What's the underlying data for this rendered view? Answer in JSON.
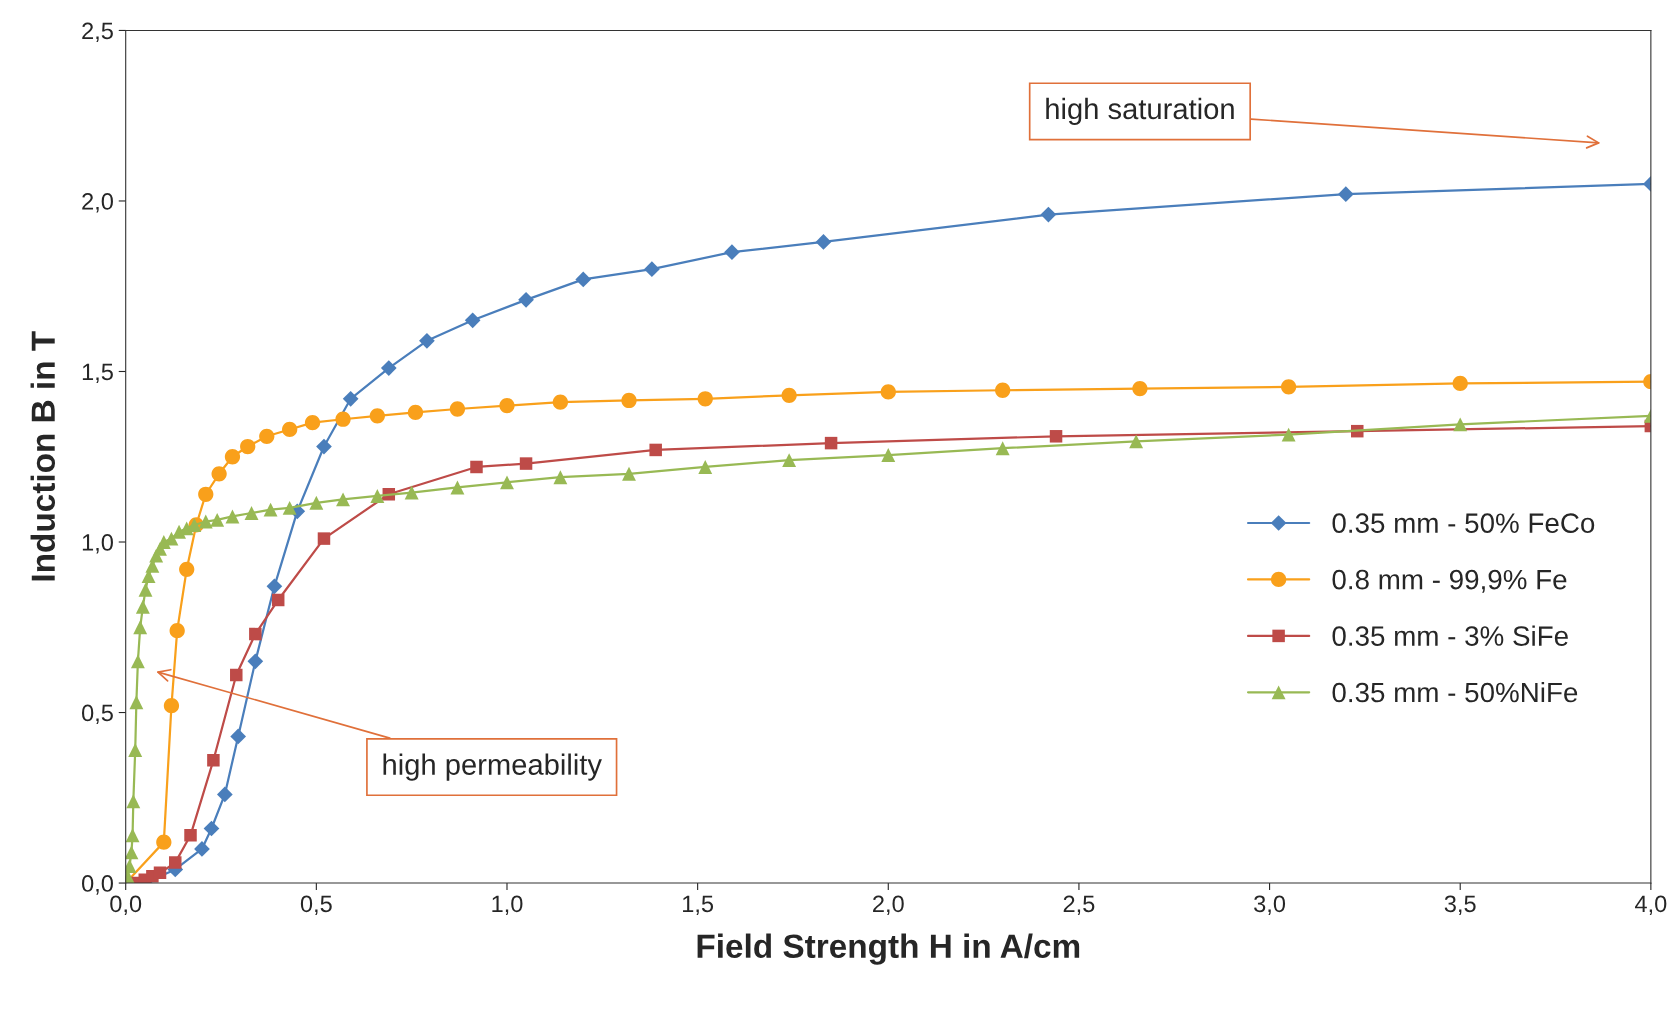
{
  "chart_data": {
    "type": "line",
    "xlabel": "Field Strength H in A/cm",
    "ylabel": "Induction B in T",
    "xlim": [
      0,
      4
    ],
    "ylim": [
      0,
      2.5
    ],
    "xticks": [
      {
        "value": 0,
        "label": "0,0"
      },
      {
        "value": 0.5,
        "label": "0,5"
      },
      {
        "value": 1,
        "label": "1,0"
      },
      {
        "value": 1.5,
        "label": "1,5"
      },
      {
        "value": 2,
        "label": "2,0"
      },
      {
        "value": 2.5,
        "label": "2,5"
      },
      {
        "value": 3,
        "label": "3,0"
      },
      {
        "value": 3.5,
        "label": "3,5"
      },
      {
        "value": 4,
        "label": "4,0"
      }
    ],
    "yticks": [
      {
        "value": 0,
        "label": "0,0"
      },
      {
        "value": 0.5,
        "label": "0,5"
      },
      {
        "value": 1,
        "label": "1,0"
      },
      {
        "value": 1.5,
        "label": "1,5"
      },
      {
        "value": 2,
        "label": "2,0"
      },
      {
        "value": 2.5,
        "label": "2,5"
      }
    ],
    "grid": false,
    "legend": "right",
    "line_style": "solid",
    "annotations": [
      "high saturation",
      "high permeability"
    ],
    "series": [
      {
        "name": "0.35 mm - 50% FeCo",
        "color": "#4a7ebb",
        "marker": "diamond",
        "x": [
          0.05,
          0.13,
          0.2,
          0.225,
          0.26,
          0.295,
          0.34,
          0.39,
          0.45,
          0.52,
          0.59,
          0.69,
          0.79,
          0.91,
          1.05,
          1.2,
          1.38,
          1.59,
          1.83,
          2.42,
          3.2,
          4.0
        ],
        "values": [
          0.0,
          0.04,
          0.1,
          0.16,
          0.26,
          0.43,
          0.65,
          0.87,
          1.09,
          1.28,
          1.42,
          1.51,
          1.59,
          1.65,
          1.71,
          1.77,
          1.8,
          1.85,
          1.88,
          1.96,
          2.02,
          2.05
        ]
      },
      {
        "name": "0.8 mm - 99,9% Fe",
        "color": "#f9a01b",
        "marker": "circle",
        "x": [
          0.0,
          0.1,
          0.12,
          0.135,
          0.16,
          0.185,
          0.21,
          0.245,
          0.28,
          0.32,
          0.37,
          0.43,
          0.49,
          0.57,
          0.66,
          0.76,
          0.87,
          1.0,
          1.14,
          1.32,
          1.52,
          1.74,
          2.0,
          2.3,
          2.66,
          3.05,
          3.5,
          4.0
        ],
        "values": [
          0.0,
          0.12,
          0.52,
          0.74,
          0.92,
          1.05,
          1.14,
          1.2,
          1.25,
          1.28,
          1.31,
          1.33,
          1.35,
          1.36,
          1.37,
          1.38,
          1.39,
          1.4,
          1.41,
          1.415,
          1.42,
          1.43,
          1.44,
          1.445,
          1.45,
          1.455,
          1.465,
          1.47
        ]
      },
      {
        "name": "0.35 mm - 3% SiFe",
        "color": "#be4b48",
        "marker": "square",
        "x": [
          0.03,
          0.05,
          0.07,
          0.09,
          0.13,
          0.17,
          0.23,
          0.29,
          0.34,
          0.4,
          0.52,
          0.69,
          0.92,
          1.05,
          1.39,
          1.85,
          2.44,
          3.23,
          4.0
        ],
        "values": [
          0.0,
          0.01,
          0.02,
          0.03,
          0.06,
          0.14,
          0.36,
          0.61,
          0.73,
          0.83,
          1.01,
          1.14,
          1.22,
          1.23,
          1.27,
          1.29,
          1.31,
          1.325,
          1.34
        ]
      },
      {
        "name": "0.35 mm - 50%NiFe",
        "color": "#98b954",
        "marker": "triangle",
        "x": [
          0.0,
          0.005,
          0.01,
          0.015,
          0.018,
          0.02,
          0.025,
          0.028,
          0.032,
          0.038,
          0.045,
          0.052,
          0.06,
          0.07,
          0.08,
          0.09,
          0.1,
          0.12,
          0.14,
          0.16,
          0.18,
          0.21,
          0.24,
          0.28,
          0.33,
          0.38,
          0.43,
          0.5,
          0.57,
          0.66,
          0.75,
          0.87,
          1.0,
          1.14,
          1.32,
          1.52,
          1.74,
          2.0,
          2.3,
          2.65,
          3.05,
          3.5,
          4.0
        ],
        "values": [
          0.0,
          0.02,
          0.05,
          0.09,
          0.14,
          0.24,
          0.39,
          0.53,
          0.65,
          0.75,
          0.81,
          0.86,
          0.9,
          0.93,
          0.96,
          0.98,
          1.0,
          1.01,
          1.03,
          1.04,
          1.05,
          1.06,
          1.065,
          1.075,
          1.085,
          1.095,
          1.1,
          1.115,
          1.125,
          1.135,
          1.145,
          1.16,
          1.175,
          1.19,
          1.2,
          1.22,
          1.24,
          1.255,
          1.275,
          1.295,
          1.315,
          1.345,
          1.37
        ]
      }
    ]
  }
}
